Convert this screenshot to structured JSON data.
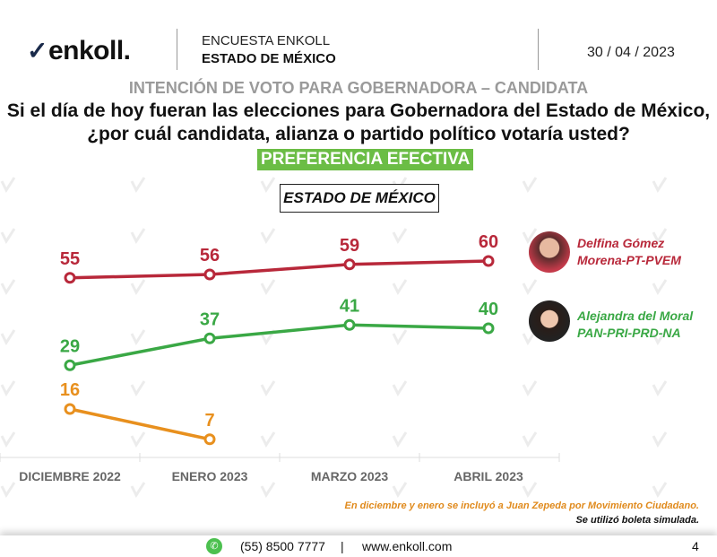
{
  "header": {
    "logo_text": "enkoll.",
    "survey": "ENCUESTA ENKOLL",
    "region": "ESTADO DE MÉXICO",
    "date": "30 / 04 / 2023"
  },
  "subtitle": "INTENCIÓN DE VOTO PARA GOBERNADORA – CANDIDATA",
  "question_line1": "Si el día de hoy fueran las elecciones para Gobernadora del Estado de México,",
  "question_line2": "¿por cuál candidata, alianza o partido político votaría usted?",
  "badge": "PREFERENCIA EFECTIVA",
  "chart_region": "ESTADO DE MÉXICO",
  "watermark": "enkoll.",
  "chart_data": {
    "type": "line",
    "categories": [
      "DICIEMBRE 2022",
      "ENERO 2023",
      "MARZO 2023",
      "ABRIL 2023"
    ],
    "series": [
      {
        "name": "Delfina Gómez",
        "line2": "Morena-PT-PVEM",
        "color": "#b8283a",
        "values": [
          55,
          56,
          59,
          60
        ]
      },
      {
        "name": "Alejandra del Moral",
        "line2": "PAN-PRI-PRD-NA",
        "color": "#3aa845",
        "values": [
          29,
          37,
          41,
          40
        ]
      },
      {
        "name": "Juan Zepeda",
        "color": "#e8901e",
        "values": [
          16,
          7,
          null,
          null
        ]
      }
    ],
    "ylim": [
      0,
      70
    ]
  },
  "notes": [
    "En diciembre y enero se incluyó a Juan Zepeda por Movimiento Ciudadano.",
    "Se utilizó boleta simulada."
  ],
  "footer": {
    "phone": "(55) 8500 7777",
    "separator": "|",
    "website": "www.enkoll.com",
    "page": "4"
  }
}
